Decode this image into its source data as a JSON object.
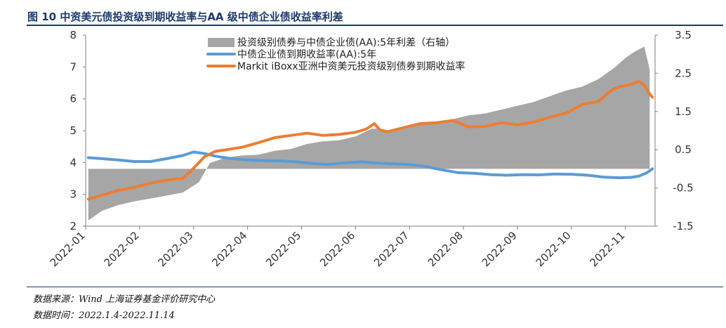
{
  "header": {
    "title": "图 10 中资美元债投资级到期收益率与AA 级中债企业债收益率利差"
  },
  "footer": {
    "source": "数据来源：Wind 上海证券基金评价研究中心",
    "date": "数据时间：2022.1.4-2022.11.14"
  },
  "chart_data": {
    "type": "area",
    "title": "",
    "xlabel": "",
    "ylabel": "",
    "ylim": [
      2,
      8
    ],
    "y_ticks": [
      "2",
      "3",
      "4",
      "5",
      "6",
      "7",
      "8"
    ],
    "y2lim": [
      -1.5,
      3.5
    ],
    "y2_ticks": [
      "-1.5",
      "-0.5",
      "0.5",
      "1.5",
      "2.5",
      "3.5"
    ],
    "x_ticks": [
      "2022-01",
      "2022-02",
      "2022-03",
      "2022-04",
      "2022-05",
      "2022-06",
      "2022-07",
      "2022-08",
      "2022-09",
      "2022-10",
      "2022-11"
    ],
    "x_range": [
      1.0,
      11.55
    ],
    "legend_position": "top",
    "series": [
      {
        "name": "投资级别债券与中债企业债(AA):5年利差（右轴）",
        "type": "area",
        "axis": "right",
        "color": "#a6a6a6",
        "x": [
          1.05,
          1.3,
          1.6,
          1.9,
          2.2,
          2.5,
          2.8,
          3.1,
          3.3,
          3.6,
          3.9,
          4.2,
          4.5,
          4.8,
          5.1,
          5.4,
          5.7,
          6.0,
          6.3,
          6.45,
          6.6,
          6.9,
          7.2,
          7.5,
          7.8,
          8.1,
          8.4,
          8.7,
          9.0,
          9.3,
          9.6,
          9.9,
          10.2,
          10.5,
          10.8,
          11.0,
          11.15,
          11.35,
          11.45
        ],
        "values": [
          -1.35,
          -1.1,
          -0.95,
          -0.85,
          -0.78,
          -0.7,
          -0.62,
          -0.35,
          0.15,
          0.3,
          0.35,
          0.37,
          0.47,
          0.52,
          0.65,
          0.72,
          0.75,
          0.85,
          1.05,
          1.05,
          0.95,
          1.05,
          1.15,
          1.22,
          1.3,
          1.4,
          1.45,
          1.55,
          1.65,
          1.75,
          1.9,
          2.05,
          2.15,
          2.35,
          2.65,
          2.9,
          3.05,
          3.2,
          2.6
        ]
      },
      {
        "name": "中债企业债到期收益率(AA):5年",
        "type": "line",
        "axis": "left",
        "color": "#5b9bd5",
        "x": [
          1.05,
          1.3,
          1.6,
          1.9,
          2.2,
          2.5,
          2.8,
          3.0,
          3.2,
          3.4,
          3.7,
          4.0,
          4.3,
          4.6,
          4.9,
          5.2,
          5.5,
          5.8,
          6.1,
          6.4,
          6.7,
          7.0,
          7.3,
          7.6,
          7.9,
          8.2,
          8.5,
          8.8,
          9.1,
          9.4,
          9.7,
          10.0,
          10.3,
          10.6,
          10.9,
          11.1,
          11.25,
          11.4,
          11.5
        ],
        "values": [
          4.15,
          4.12,
          4.08,
          4.03,
          4.03,
          4.12,
          4.22,
          4.33,
          4.28,
          4.2,
          4.12,
          4.08,
          4.06,
          4.05,
          4.02,
          3.97,
          3.94,
          3.99,
          4.02,
          3.98,
          3.96,
          3.94,
          3.87,
          3.77,
          3.68,
          3.66,
          3.62,
          3.6,
          3.62,
          3.61,
          3.64,
          3.63,
          3.6,
          3.54,
          3.52,
          3.53,
          3.57,
          3.68,
          3.8
        ]
      },
      {
        "name": "Markit iBoxx亚洲中资美元投资级别债券到期收益率",
        "type": "line",
        "axis": "left",
        "color": "#ed7d31",
        "x": [
          1.05,
          1.3,
          1.6,
          1.9,
          2.2,
          2.5,
          2.8,
          3.0,
          3.2,
          3.4,
          3.6,
          3.9,
          4.2,
          4.5,
          4.8,
          5.1,
          5.4,
          5.7,
          6.0,
          6.2,
          6.35,
          6.45,
          6.6,
          6.9,
          7.2,
          7.5,
          7.8,
          8.1,
          8.4,
          8.7,
          9.0,
          9.3,
          9.6,
          9.9,
          10.2,
          10.5,
          10.75,
          10.9,
          11.1,
          11.25,
          11.35,
          11.45,
          11.5
        ],
        "values": [
          2.85,
          2.97,
          3.12,
          3.22,
          3.35,
          3.45,
          3.5,
          3.82,
          4.18,
          4.35,
          4.4,
          4.48,
          4.62,
          4.78,
          4.85,
          4.92,
          4.85,
          4.88,
          4.95,
          5.05,
          5.22,
          5.02,
          4.97,
          5.1,
          5.22,
          5.25,
          5.32,
          5.12,
          5.13,
          5.25,
          5.18,
          5.27,
          5.42,
          5.55,
          5.82,
          5.92,
          6.28,
          6.38,
          6.45,
          6.55,
          6.42,
          6.15,
          6.05
        ]
      }
    ]
  }
}
